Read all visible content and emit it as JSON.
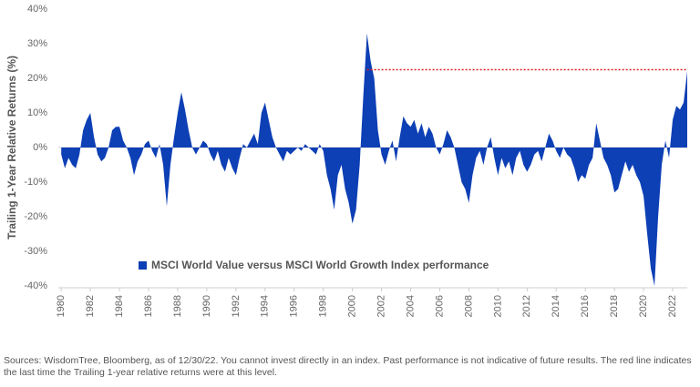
{
  "chart_data": {
    "type": "area",
    "y_axis_label": "Trailing 1-Year Relative Returns (%)",
    "legend": "MSCI World Value versus MSCI World Growth Index performance",
    "color": "#0d3fb5",
    "footnote": "Sources: WisdomTree, Bloomberg, as of 12/30/22. You cannot invest directly in an index. Past performance is not indicative of future results. The red line indicates the last time the Trailing 1-year relative returns were at this level.",
    "reference_line": {
      "value": 22.5,
      "x_start": 2001.0,
      "x_end": 2023.0,
      "color": "#e02020"
    },
    "xlim": [
      1979.8,
      2023.0
    ],
    "xticks": [
      1980,
      1982,
      1984,
      1986,
      1988,
      1990,
      1992,
      1994,
      1996,
      1998,
      2000,
      2002,
      2004,
      2006,
      2008,
      2010,
      2012,
      2014,
      2016,
      2018,
      2020,
      2022
    ],
    "ylim": [
      -40,
      40
    ],
    "yticks": [
      {
        "value": -40,
        "label": "-40%"
      },
      {
        "value": -30,
        "label": "-30%"
      },
      {
        "value": -20,
        "label": "-20%"
      },
      {
        "value": -10,
        "label": "-10%"
      },
      {
        "value": 0,
        "label": "0%"
      },
      {
        "value": 10,
        "label": "10%"
      },
      {
        "value": 20,
        "label": "20%"
      },
      {
        "value": 30,
        "label": "30%"
      },
      {
        "value": 40,
        "label": "40%"
      }
    ],
    "x": [
      1980,
      1980.25,
      1980.5,
      1980.75,
      1981,
      1981.25,
      1981.5,
      1981.75,
      1982,
      1982.25,
      1982.5,
      1982.75,
      1983,
      1983.25,
      1983.5,
      1983.75,
      1984,
      1984.25,
      1984.5,
      1984.75,
      1985,
      1985.25,
      1985.5,
      1985.75,
      1986,
      1986.25,
      1986.5,
      1986.75,
      1987,
      1987.25,
      1987.5,
      1987.75,
      1988,
      1988.25,
      1988.5,
      1988.75,
      1989,
      1989.25,
      1989.5,
      1989.75,
      1990,
      1990.25,
      1990.5,
      1990.75,
      1991,
      1991.25,
      1991.5,
      1991.75,
      1992,
      1992.25,
      1992.5,
      1992.75,
      1993,
      1993.25,
      1993.5,
      1993.75,
      1994,
      1994.25,
      1994.5,
      1994.75,
      1995,
      1995.25,
      1995.5,
      1995.75,
      1996,
      1996.25,
      1996.5,
      1996.75,
      1997,
      1997.25,
      1997.5,
      1997.75,
      1998,
      1998.25,
      1998.5,
      1998.75,
      1999,
      1999.25,
      1999.5,
      1999.75,
      2000,
      2000.25,
      2000.5,
      2000.75,
      2001,
      2001.25,
      2001.5,
      2001.75,
      2002,
      2002.25,
      2002.5,
      2002.75,
      2003,
      2003.25,
      2003.5,
      2003.75,
      2004,
      2004.25,
      2004.5,
      2004.75,
      2005,
      2005.25,
      2005.5,
      2005.75,
      2006,
      2006.25,
      2006.5,
      2006.75,
      2007,
      2007.25,
      2007.5,
      2007.75,
      2008,
      2008.25,
      2008.5,
      2008.75,
      2009,
      2009.25,
      2009.5,
      2009.75,
      2010,
      2010.25,
      2010.5,
      2010.75,
      2011,
      2011.25,
      2011.5,
      2011.75,
      2012,
      2012.25,
      2012.5,
      2012.75,
      2013,
      2013.25,
      2013.5,
      2013.75,
      2014,
      2014.25,
      2014.5,
      2014.75,
      2015,
      2015.25,
      2015.5,
      2015.75,
      2016,
      2016.25,
      2016.5,
      2016.75,
      2017,
      2017.25,
      2017.5,
      2017.75,
      2018,
      2018.25,
      2018.5,
      2018.75,
      2019,
      2019.25,
      2019.5,
      2019.75,
      2020,
      2020.25,
      2020.5,
      2020.75,
      2021,
      2021.25,
      2021.5,
      2021.75,
      2022,
      2022.25,
      2022.5,
      2022.75,
      2023
    ],
    "values": [
      -2,
      -6,
      -3,
      -5,
      -6,
      -2,
      5,
      8,
      10,
      3,
      -2,
      -4,
      -3,
      0,
      5,
      6,
      6,
      2,
      0,
      -3,
      -8,
      -4,
      -2,
      1,
      2,
      -1,
      -3,
      1,
      -5,
      -17,
      -5,
      3,
      10,
      16,
      11,
      5,
      0,
      -2,
      0,
      2,
      1,
      -2,
      -4,
      -1,
      -5,
      -7,
      -3,
      -6,
      -8,
      -3,
      1,
      0,
      2,
      4,
      1,
      10,
      13,
      8,
      3,
      0,
      -2,
      -4,
      -1,
      -2,
      -1,
      0,
      -1,
      1,
      0,
      -1,
      -2,
      1,
      -1,
      -8,
      -12,
      -18,
      -8,
      -5,
      -12,
      -16,
      -22,
      -18,
      -5,
      15,
      33,
      25,
      20,
      5,
      -2,
      -5,
      -1,
      2,
      -4,
      3,
      9,
      7,
      6,
      8,
      4,
      7,
      3,
      6,
      4,
      0,
      -2,
      1,
      5,
      3,
      0,
      -5,
      -10,
      -12,
      -16,
      -8,
      -3,
      -1,
      -5,
      0,
      3,
      -3,
      -8,
      -3,
      -6,
      -4,
      -8,
      -3,
      -1,
      -5,
      -7,
      -5,
      -2,
      -1,
      -4,
      0,
      4,
      2,
      -1,
      -3,
      0,
      -2,
      -3,
      -6,
      -10,
      -8,
      -9,
      -5,
      -3,
      7,
      2,
      -3,
      -5,
      -8,
      -13,
      -12,
      -8,
      -4,
      -7,
      -5,
      -8,
      -10,
      -14,
      -25,
      -35,
      -40,
      -20,
      -5,
      2,
      -3,
      8,
      12,
      11,
      13,
      22
    ]
  }
}
